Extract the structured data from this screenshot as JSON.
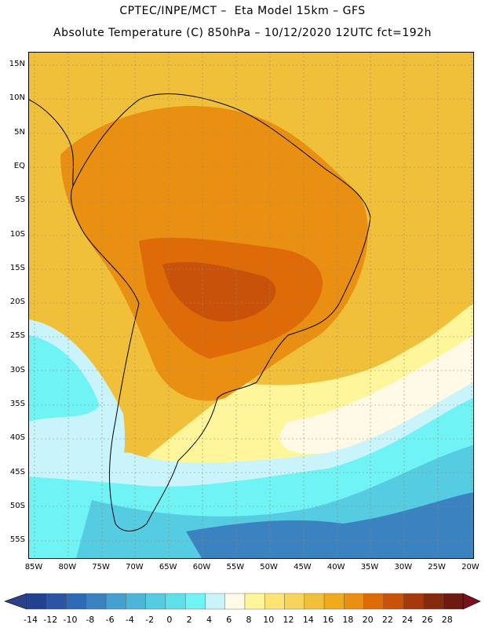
{
  "header": {
    "line1": "CPTEC/INPE/MCT –  Eta Model 15km – GFS",
    "line2": "Absolute Temperature (C) 850hPa – 10/12/2020 12UTC fct=192h"
  },
  "map": {
    "lat_labels": [
      "15N",
      "10N",
      "5N",
      "EQ",
      "5S",
      "10S",
      "15S",
      "20S",
      "25S",
      "30S",
      "35S",
      "40S",
      "45S",
      "50S",
      "55S"
    ],
    "lon_labels": [
      "85W",
      "80W",
      "75W",
      "70W",
      "65W",
      "60W",
      "55W",
      "50W",
      "45W",
      "40W",
      "35W",
      "30W",
      "25W",
      "20W"
    ]
  },
  "colorbar": {
    "labels": [
      "-14",
      "-12",
      "-10",
      "-8",
      "-6",
      "-4",
      "-2",
      "0",
      "2",
      "4",
      "6",
      "8",
      "10",
      "12",
      "14",
      "16",
      "18",
      "20",
      "22",
      "24",
      "26",
      "28"
    ],
    "colors": [
      "#22418f",
      "#2a55a2",
      "#2f6ab4",
      "#3a82c0",
      "#45a0cf",
      "#4db6d8",
      "#55cce2",
      "#5fdfea",
      "#70f3f5",
      "#c9f4fb",
      "#fff9e6",
      "#fff59a",
      "#fde474",
      "#f7d45c",
      "#f1c03a",
      "#f0ab1c",
      "#e98f12",
      "#df6a08",
      "#c9520a",
      "#a5390c",
      "#862a0e",
      "#6e1a10"
    ],
    "under_color": "#2b3f8a",
    "over_color": "#7a0f1e"
  }
}
